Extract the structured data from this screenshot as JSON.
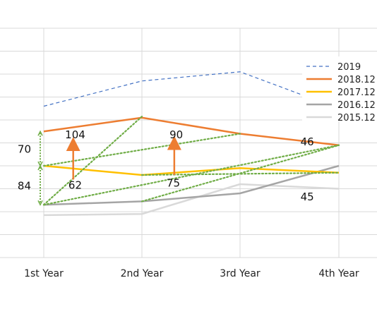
{
  "chart_data": {
    "type": "line",
    "categories": [
      "1st Year",
      "2nd Year",
      "3rd Year",
      "4th Year"
    ],
    "ylim": [
      0,
      10
    ],
    "grid": true,
    "legend_position": "top-right",
    "series": [
      {
        "name": "2019",
        "values": [
          6.6,
          7.7,
          8.1,
          6.5
        ],
        "color": "#4472C4",
        "style": "dashed"
      },
      {
        "name": "2018.12",
        "values": [
          5.5,
          6.1,
          5.4,
          4.9
        ],
        "color": "#ED7D31",
        "style": "solid"
      },
      {
        "name": "2017.12",
        "values": [
          4.0,
          3.6,
          3.9,
          3.7
        ],
        "color": "#FFC000",
        "style": "solid"
      },
      {
        "name": "2016.12",
        "values": [
          2.3,
          2.45,
          2.8,
          4.0
        ],
        "color": "#A5A5A5",
        "style": "solid"
      },
      {
        "name": "2015.12",
        "values": [
          1.85,
          1.9,
          3.2,
          3.0
        ],
        "color": "#D9D9D9",
        "style": "solid"
      }
    ],
    "dotted_lines": [
      {
        "from": [
          0,
          2.3
        ],
        "to": [
          1,
          6.15
        ]
      },
      {
        "from": [
          0,
          4.0
        ],
        "to": [
          2,
          5.4
        ]
      },
      {
        "from": [
          0,
          2.3
        ],
        "to": [
          3,
          4.9
        ]
      },
      {
        "from": [
          1,
          2.45
        ],
        "to": [
          3,
          4.9
        ]
      },
      {
        "from": [
          1,
          3.6
        ],
        "to": [
          3,
          3.7
        ]
      }
    ],
    "bracket_color": "#70AD47",
    "arrow_color": "#ED7D31",
    "brackets": [
      {
        "x": 0,
        "y_from": 5.5,
        "y_to": 4.0,
        "label": "70"
      },
      {
        "x": 0,
        "y_from": 4.0,
        "y_to": 2.3,
        "label": "84"
      }
    ],
    "arrows": [
      {
        "x": 0.3,
        "y_from": 3.4,
        "y_to": 4.95
      },
      {
        "x": 1.33,
        "y_from": 3.6,
        "y_to": 5.0
      }
    ],
    "annotations": [
      {
        "text": "104",
        "x": 0.32,
        "y": 5.2
      },
      {
        "text": "62",
        "x": 0.32,
        "y": 3.0
      },
      {
        "text": "90",
        "x": 1.35,
        "y": 5.2
      },
      {
        "text": "75",
        "x": 1.32,
        "y": 3.1
      },
      {
        "text": "46",
        "x": 2.68,
        "y": 4.9
      },
      {
        "text": "45",
        "x": 2.68,
        "y": 2.5
      }
    ]
  }
}
